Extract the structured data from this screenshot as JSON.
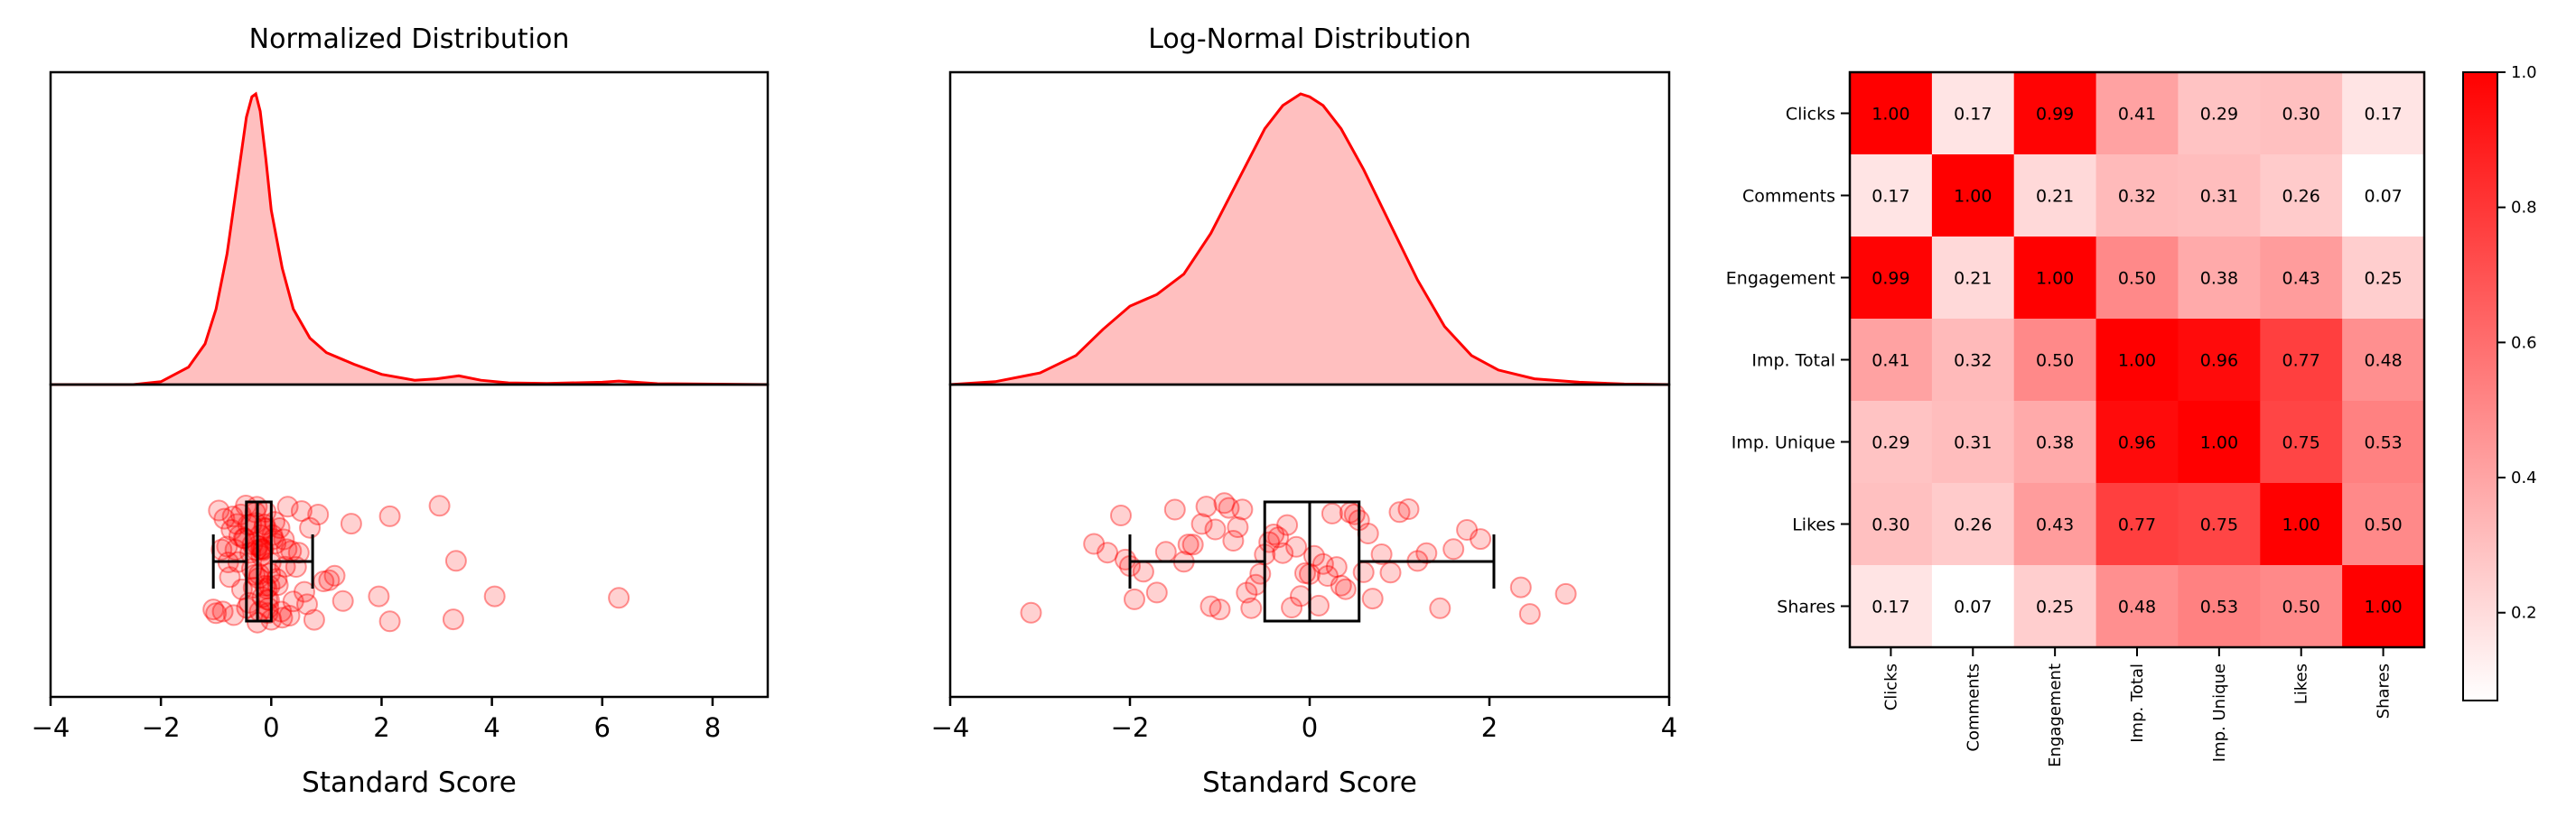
{
  "chart_data": [
    {
      "type": "density",
      "title": "Normalized Distribution",
      "xlabel": "Standard Score",
      "xlim": [
        -4,
        9
      ],
      "xticks": [
        -4,
        -2,
        0,
        2,
        4,
        6,
        8
      ],
      "kde": {
        "x": [
          -4.0,
          -2.5,
          -2.0,
          -1.5,
          -1.2,
          -1.0,
          -0.8,
          -0.6,
          -0.45,
          -0.35,
          -0.28,
          -0.2,
          -0.1,
          0.0,
          0.2,
          0.4,
          0.7,
          1.0,
          1.5,
          2.0,
          2.6,
          3.0,
          3.4,
          3.8,
          4.3,
          5.0,
          6.0,
          6.3,
          6.6,
          7.0,
          9.0
        ],
        "density": [
          0.0,
          0.0,
          0.01,
          0.06,
          0.14,
          0.26,
          0.45,
          0.72,
          0.92,
          0.99,
          1.0,
          0.94,
          0.78,
          0.6,
          0.4,
          0.26,
          0.16,
          0.11,
          0.07,
          0.035,
          0.015,
          0.02,
          0.03,
          0.015,
          0.006,
          0.004,
          0.008,
          0.012,
          0.008,
          0.003,
          0.0
        ]
      },
      "points": [
        -1.05,
        -1.0,
        -0.95,
        -0.9,
        -0.88,
        -0.85,
        -0.8,
        -0.78,
        -0.75,
        -0.72,
        -0.7,
        -0.68,
        -0.65,
        -0.62,
        -0.6,
        -0.58,
        -0.55,
        -0.53,
        -0.5,
        -0.48,
        -0.46,
        -0.44,
        -0.42,
        -0.4,
        -0.38,
        -0.36,
        -0.35,
        -0.34,
        -0.32,
        -0.3,
        -0.29,
        -0.28,
        -0.27,
        -0.26,
        -0.25,
        -0.24,
        -0.23,
        -0.22,
        -0.21,
        -0.2,
        -0.19,
        -0.18,
        -0.17,
        -0.16,
        -0.15,
        -0.14,
        -0.13,
        -0.12,
        -0.11,
        -0.1,
        -0.09,
        -0.08,
        -0.07,
        -0.06,
        -0.05,
        -0.04,
        -0.03,
        -0.02,
        -0.01,
        0.0,
        0.02,
        0.04,
        0.06,
        0.08,
        0.1,
        0.12,
        0.15,
        0.18,
        0.2,
        0.23,
        0.25,
        0.28,
        0.3,
        0.33,
        0.36,
        0.4,
        0.45,
        0.5,
        0.55,
        0.6,
        0.65,
        0.7,
        0.78,
        0.85,
        0.95,
        1.05,
        1.15,
        1.3,
        1.45,
        1.95,
        2.15,
        2.15,
        3.05,
        3.3,
        3.35,
        4.05,
        6.3
      ],
      "box": {
        "whisker_low": -1.05,
        "q1": -0.45,
        "median": -0.25,
        "q3": 0.0,
        "whisker_high": 0.75
      }
    },
    {
      "type": "density",
      "title": "Log-Normal Distribution",
      "xlabel": "Standard Score",
      "xlim": [
        -4,
        4
      ],
      "xticks": [
        -4,
        -2,
        0,
        2,
        4
      ],
      "kde": {
        "x": [
          -4.0,
          -3.5,
          -3.0,
          -2.6,
          -2.3,
          -2.0,
          -1.7,
          -1.4,
          -1.1,
          -0.8,
          -0.5,
          -0.3,
          -0.1,
          0.0,
          0.15,
          0.35,
          0.6,
          0.9,
          1.2,
          1.5,
          1.8,
          2.1,
          2.5,
          3.0,
          3.5,
          4.0
        ],
        "density": [
          0.0,
          0.01,
          0.04,
          0.1,
          0.19,
          0.27,
          0.31,
          0.38,
          0.52,
          0.7,
          0.88,
          0.96,
          1.0,
          0.99,
          0.96,
          0.88,
          0.74,
          0.55,
          0.36,
          0.2,
          0.1,
          0.05,
          0.02,
          0.008,
          0.002,
          0.0
        ]
      },
      "points": [
        -3.1,
        -2.4,
        -2.25,
        -2.1,
        -2.05,
        -2.0,
        -1.95,
        -1.85,
        -1.7,
        -1.6,
        -1.5,
        -1.4,
        -1.35,
        -1.3,
        -1.2,
        -1.15,
        -1.1,
        -1.05,
        -1.0,
        -0.95,
        -0.9,
        -0.85,
        -0.8,
        -0.75,
        -0.7,
        -0.65,
        -0.6,
        -0.55,
        -0.5,
        -0.45,
        -0.4,
        -0.35,
        -0.3,
        -0.25,
        -0.2,
        -0.15,
        -0.1,
        -0.05,
        0.0,
        0.05,
        0.1,
        0.15,
        0.2,
        0.25,
        0.3,
        0.35,
        0.4,
        0.45,
        0.5,
        0.55,
        0.6,
        0.65,
        0.7,
        0.8,
        0.9,
        1.0,
        1.1,
        1.2,
        1.3,
        1.45,
        1.6,
        1.75,
        1.9,
        2.35,
        2.45,
        2.85
      ],
      "box": {
        "whisker_low": -2.0,
        "q1": -0.5,
        "median": 0.0,
        "q3": 0.55,
        "whisker_high": 2.05
      }
    },
    {
      "type": "heatmap",
      "labels": [
        "Clicks",
        "Comments",
        "Engagement",
        "Imp. Total",
        "Imp. Unique",
        "Likes",
        "Shares"
      ],
      "values": [
        [
          1.0,
          0.17,
          0.99,
          0.41,
          0.29,
          0.3,
          0.17
        ],
        [
          0.17,
          1.0,
          0.21,
          0.32,
          0.31,
          0.26,
          0.07
        ],
        [
          0.99,
          0.21,
          1.0,
          0.5,
          0.38,
          0.43,
          0.25
        ],
        [
          0.41,
          0.32,
          0.5,
          1.0,
          0.96,
          0.77,
          0.48
        ],
        [
          0.29,
          0.31,
          0.38,
          0.96,
          1.0,
          0.75,
          0.53
        ],
        [
          0.3,
          0.26,
          0.43,
          0.77,
          0.75,
          1.0,
          0.5
        ],
        [
          0.17,
          0.07,
          0.25,
          0.48,
          0.53,
          0.5,
          1.0
        ]
      ],
      "colorbar": {
        "min": 0.07,
        "max": 1.0,
        "ticks": [
          "0.2",
          "0.4",
          "0.6",
          "0.8",
          "1.0"
        ]
      },
      "colors": {
        "low": "#ffffff",
        "high": "#ff0000"
      }
    }
  ],
  "colors": {
    "accent": "#ff0000",
    "fill": "#ffbfbf",
    "box": "#000000"
  }
}
